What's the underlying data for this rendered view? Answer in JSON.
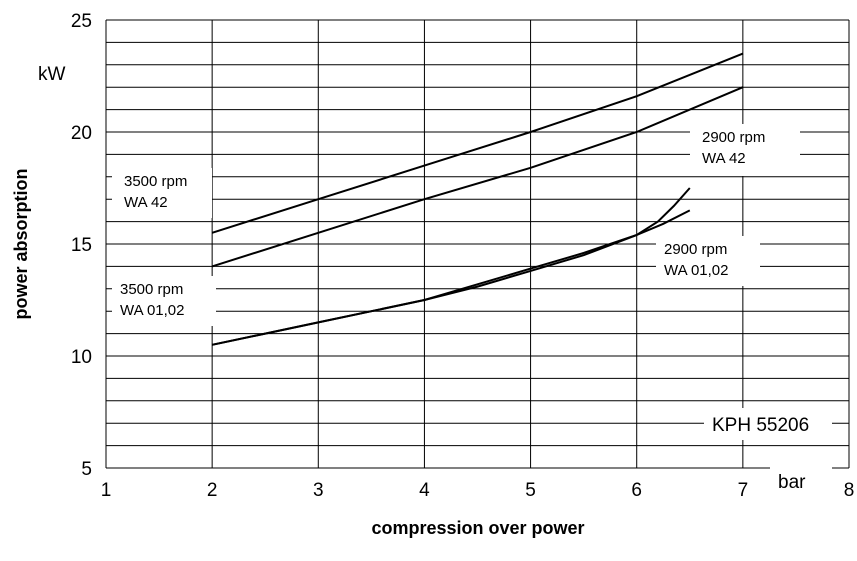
{
  "chart_data": {
    "type": "line",
    "title": "",
    "xlabel": "compression over power",
    "ylabel": "power absorption",
    "x_unit": "bar",
    "y_unit": "kW",
    "xlim": [
      1,
      8
    ],
    "ylim": [
      5,
      25
    ],
    "x_ticks": [
      "1",
      "2",
      "3",
      "4",
      "5",
      "6",
      "7",
      "8"
    ],
    "y_ticks": [
      "5",
      "10",
      "15",
      "20",
      "25"
    ],
    "grid": true,
    "annotation": "KPH 55206",
    "series": [
      {
        "name": "3500 rpm WA 42",
        "label_lines": [
          "3500 rpm",
          "WA 42"
        ],
        "x": [
          2,
          3,
          4,
          5,
          6,
          7
        ],
        "y": [
          15.5,
          17.0,
          18.5,
          20.0,
          21.6,
          23.5
        ]
      },
      {
        "name": "2900 rpm WA 42",
        "label_lines": [
          "2900 rpm",
          "WA 42"
        ],
        "x": [
          2,
          3,
          4,
          5,
          6,
          7
        ],
        "y": [
          14.0,
          15.5,
          17.0,
          18.4,
          20.0,
          22.0
        ]
      },
      {
        "name": "3500 rpm WA 01,02",
        "label_lines": [
          "3500 rpm",
          "WA 01,02"
        ],
        "x": [
          2,
          2.5,
          3,
          3.5,
          4,
          4.5,
          5,
          5.5,
          6,
          6.2,
          6.35,
          6.5
        ],
        "y": [
          10.5,
          11.0,
          11.5,
          12.0,
          12.5,
          13.2,
          13.9,
          14.6,
          15.4,
          16.0,
          16.7,
          17.5
        ]
      },
      {
        "name": "2900 rpm WA 01,02",
        "label_lines": [
          "2900 rpm",
          "WA 01,02"
        ],
        "x": [
          2,
          2.5,
          3,
          3.5,
          4,
          4.5,
          5,
          5.5,
          6,
          6.25,
          6.5
        ],
        "y": [
          10.5,
          11.0,
          11.5,
          12.0,
          12.5,
          13.1,
          13.8,
          14.5,
          15.4,
          15.9,
          16.5
        ]
      }
    ]
  }
}
